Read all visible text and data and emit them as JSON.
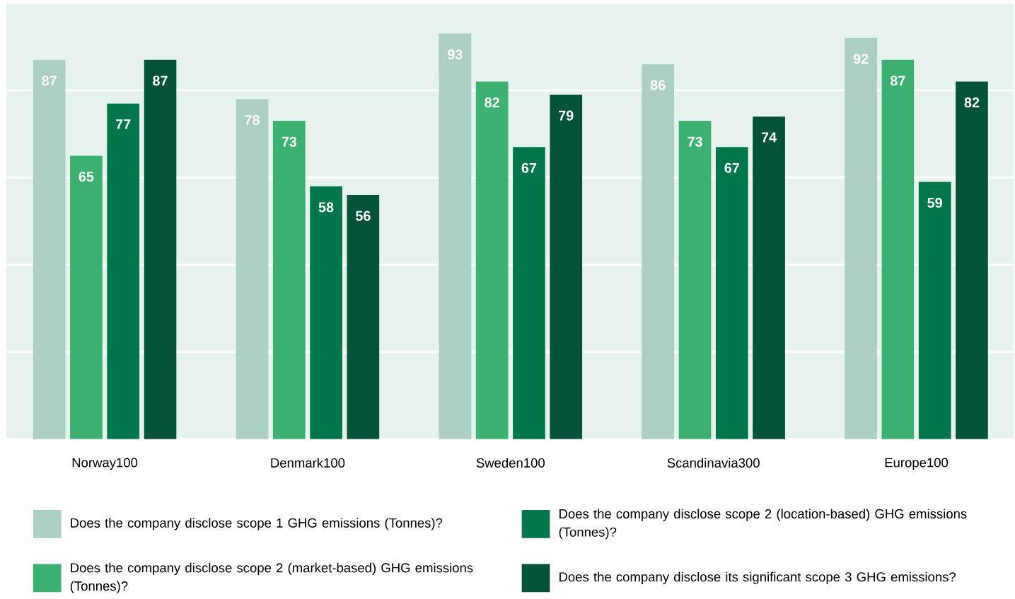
{
  "chart_data": {
    "type": "bar",
    "categories": [
      "Norway100",
      "Denmark100",
      "Sweden100",
      "Scandinavia300",
      "Europe100"
    ],
    "series": [
      {
        "name": "Does the company disclose scope 1 GHG emissions (Tonnes)?",
        "color": "#abcfc0",
        "values": [
          87,
          78,
          93,
          86,
          92
        ]
      },
      {
        "name": "Does the company disclose scope 2 (market-based) GHG emissions (Tonnes)?",
        "color": "#3cb06e",
        "values": [
          65,
          73,
          82,
          73,
          87
        ]
      },
      {
        "name": "Does the company disclose scope 2 (location-based) GHG emissions (Tonnes)?",
        "color": "#00774b",
        "values": [
          77,
          58,
          67,
          67,
          59
        ]
      },
      {
        "name": "Does the company disclose its significant scope 3 GHG emissions?",
        "color": "#03533a",
        "values": [
          87,
          56,
          79,
          74,
          82
        ]
      }
    ],
    "ylim": [
      0,
      100
    ],
    "yticks": [
      {
        "value": 0,
        "label": null
      },
      {
        "value": 20,
        "label": null
      },
      {
        "value": 40,
        "label": null
      },
      {
        "value": 60,
        "label": null
      },
      {
        "value": 80,
        "label": null
      },
      {
        "value": 100,
        "label": null
      }
    ],
    "tick_labels": "x",
    "grid": "y",
    "data_labels": true,
    "legend": "bottom"
  }
}
